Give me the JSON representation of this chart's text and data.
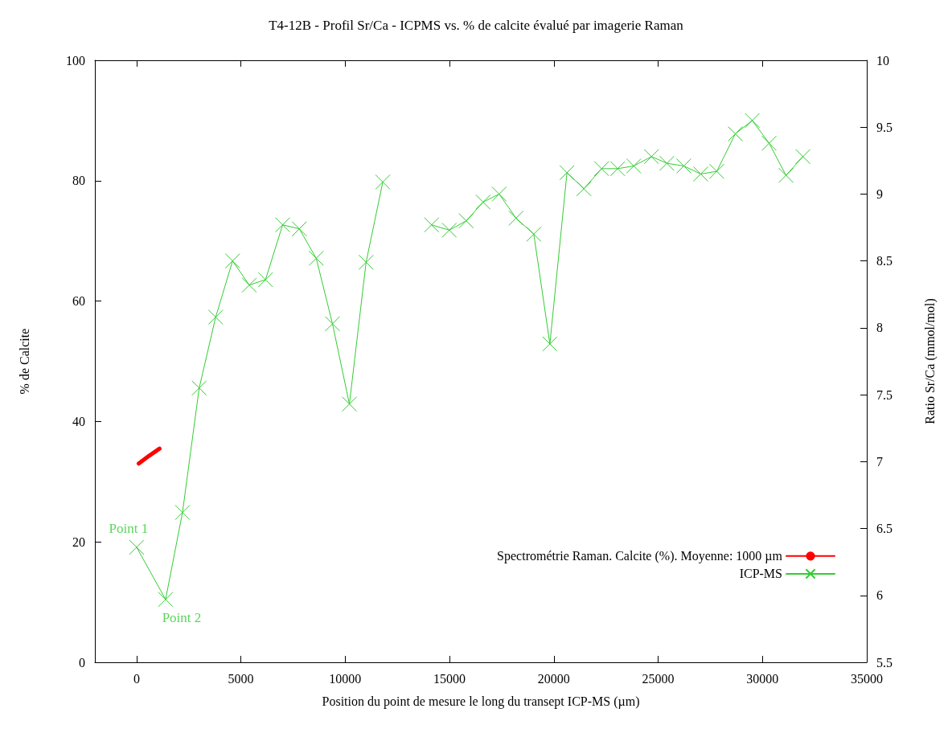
{
  "chart_data": {
    "type": "line",
    "title": "T4-12B - Profil Sr/Ca - ICPMS vs. % de calcite évalué par imagerie Raman",
    "xlabel": "Position du point de mesure le long du transept ICP-MS (µm)",
    "ylabel": "% de Calcite",
    "y2label": "Ratio Sr/Ca (mmol/mol)",
    "xlim": [
      -2000,
      35000
    ],
    "xticks": [
      0,
      5000,
      10000,
      15000,
      20000,
      25000,
      30000,
      35000
    ],
    "ylim": [
      0,
      100
    ],
    "yticks": [
      0,
      20,
      40,
      60,
      80,
      100
    ],
    "y2lim": [
      5.5,
      10
    ],
    "y2ticks": [
      5.5,
      6,
      6.5,
      7,
      7.5,
      8,
      8.5,
      9,
      9.5,
      10
    ],
    "grid": false,
    "legend": "bottom right",
    "series": [
      {
        "name": "Spectrométrie Raman. Calcite (%). Moyenne: 1000 µm",
        "color": "#ff0000",
        "marker": "none",
        "x": [
          100,
          600,
          1100
        ],
        "values": [
          33.0,
          34.3,
          35.5
        ]
      },
      {
        "name": "ICP-MS",
        "color": "#33cc33",
        "marker": "cross",
        "axis": "y2",
        "x": [
          0,
          1390,
          2200,
          3000,
          3790,
          4600,
          5400,
          6180,
          7000,
          7800,
          8610,
          9390,
          10200,
          11000,
          11800,
          13360,
          14140,
          14990,
          15800,
          16610,
          17380,
          18190,
          19040,
          19810,
          20630,
          21440,
          22290,
          23060,
          23830,
          24680,
          25420,
          26230,
          27040,
          27810,
          28700,
          29510,
          30320,
          31130,
          31940
        ],
        "values": [
          6.36,
          5.97,
          6.62,
          7.55,
          8.08,
          8.5,
          8.32,
          8.36,
          8.77,
          8.74,
          8.52,
          8.03,
          7.43,
          8.49,
          9.09,
          null,
          8.77,
          8.73,
          8.8,
          8.94,
          9.0,
          8.82,
          8.7,
          7.88,
          9.16,
          9.04,
          9.19,
          9.19,
          9.21,
          9.28,
          9.23,
          9.21,
          9.15,
          9.17,
          9.45,
          9.55,
          9.38,
          9.14,
          9.28
        ]
      }
    ],
    "annotations": [
      {
        "text": "Point 1",
        "x": 0,
        "y": 19.2
      },
      {
        "text": "Point 2",
        "x": 1390,
        "y": 10.4
      }
    ]
  }
}
